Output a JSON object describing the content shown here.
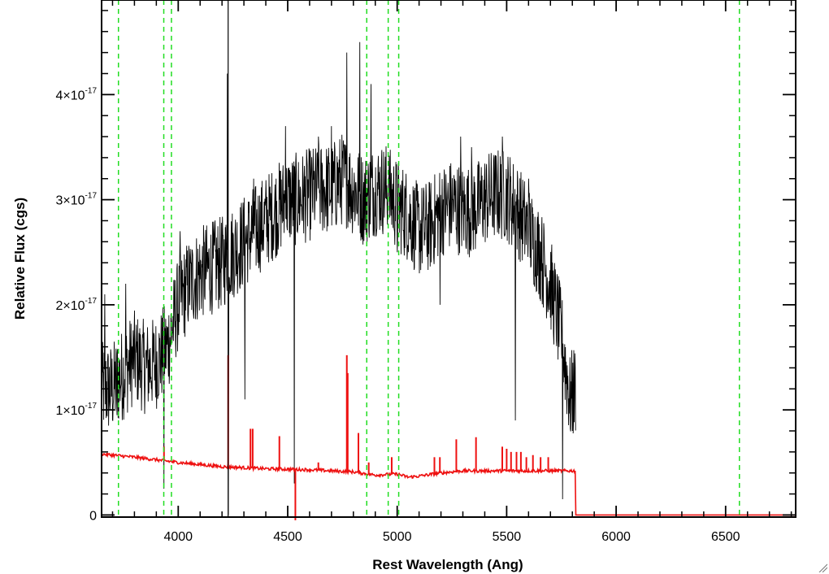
{
  "chart_data": {
    "type": "line",
    "title": "",
    "xlabel": "Rest Wavelength (Ang)",
    "ylabel": "Relative Flux (cgs)",
    "xlim": [
      3650,
      6820
    ],
    "ylim": [
      -0.02,
      4.9
    ],
    "y_exponent": "-17",
    "x_ticks": [
      4000,
      4500,
      5000,
      5500,
      6000,
      6500
    ],
    "x_tick_labels": [
      "4000",
      "4500",
      "5000",
      "5500",
      "6000",
      "6500"
    ],
    "y_ticks": [
      0,
      1,
      2,
      3,
      4
    ],
    "y_tick_labels": [
      {
        "mant": "0",
        "sup": ""
      },
      {
        "mant": "1×10",
        "sup": "-17"
      },
      {
        "mant": "2×10",
        "sup": "-17"
      },
      {
        "mant": "3×10",
        "sup": "-17"
      },
      {
        "mant": "4×10",
        "sup": "-17"
      }
    ],
    "grid": false,
    "series": [
      {
        "color": "#000000",
        "style": "solid",
        "envelope_x": [
          3650,
          3700,
          3750,
          3800,
          3850,
          3900,
          3950,
          4000,
          4050,
          4100,
          4150,
          4200,
          4250,
          4300,
          4350,
          4400,
          4450,
          4500,
          4550,
          4600,
          4650,
          4700,
          4750,
          4800,
          4850,
          4900,
          4950,
          5000,
          5050,
          5100,
          5150,
          5200,
          5250,
          5300,
          5350,
          5400,
          5450,
          5500,
          5550,
          5600,
          5650,
          5700,
          5750,
          5790,
          5815
        ],
        "envelope_y": [
          1.2,
          1.2,
          1.35,
          1.5,
          1.4,
          1.45,
          1.6,
          2.0,
          2.2,
          2.3,
          2.35,
          2.4,
          2.5,
          2.6,
          2.7,
          2.8,
          2.9,
          3.0,
          3.0,
          3.05,
          3.1,
          3.1,
          3.2,
          3.1,
          3.0,
          3.1,
          3.1,
          2.95,
          2.85,
          2.7,
          2.75,
          2.9,
          2.95,
          2.9,
          2.9,
          3.0,
          3.05,
          3.05,
          2.9,
          2.7,
          2.5,
          2.2,
          1.7,
          1.1,
          1.2
        ],
        "spikes": [
          {
            "x": 3665,
            "y": 2.1
          },
          {
            "x": 3720,
            "y": 0.95
          },
          {
            "x": 3760,
            "y": 2.2
          },
          {
            "x": 3935,
            "y": 0.25
          },
          {
            "x": 4008,
            "y": 2.7
          },
          {
            "x": 4225,
            "y": 4.2
          },
          {
            "x": 4230,
            "y": 0.0
          },
          {
            "x": 4305,
            "y": 1.1
          },
          {
            "x": 4345,
            "y": 3.2
          },
          {
            "x": 4490,
            "y": 3.7
          },
          {
            "x": 4530,
            "y": 0.3
          },
          {
            "x": 4640,
            "y": 3.6
          },
          {
            "x": 4700,
            "y": 3.7
          },
          {
            "x": 4770,
            "y": 4.4
          },
          {
            "x": 4830,
            "y": 4.5
          },
          {
            "x": 4880,
            "y": 4.1
          },
          {
            "x": 4960,
            "y": 3.2
          },
          {
            "x": 5000,
            "y": 2.5
          },
          {
            "x": 5195,
            "y": 2.0
          },
          {
            "x": 5290,
            "y": 3.6
          },
          {
            "x": 5340,
            "y": 3.5
          },
          {
            "x": 5480,
            "y": 3.6
          },
          {
            "x": 5540,
            "y": 0.9
          },
          {
            "x": 5600,
            "y": 3.2
          },
          {
            "x": 5660,
            "y": 2.7
          },
          {
            "x": 5755,
            "y": 0.15
          },
          {
            "x": 5790,
            "y": 1.5
          }
        ]
      },
      {
        "color": "#ee1111",
        "style": "solid",
        "baseline_x": [
          3650,
          3800,
          4000,
          4200,
          4400,
          4600,
          4800,
          4900,
          5000,
          5050,
          5100,
          5200,
          5300,
          5400,
          5500,
          5600,
          5700,
          5815,
          5816,
          6820
        ],
        "baseline_y": [
          0.58,
          0.55,
          0.5,
          0.46,
          0.44,
          0.43,
          0.41,
          0.38,
          0.39,
          0.36,
          0.37,
          0.4,
          0.42,
          0.42,
          0.42,
          0.42,
          0.42,
          0.42,
          0.0,
          0.0
        ],
        "lines": [
          {
            "x": 3935,
            "y": 0.65
          },
          {
            "x": 4228,
            "y": 1.52
          },
          {
            "x": 4330,
            "y": 0.82
          },
          {
            "x": 4340,
            "y": 0.82
          },
          {
            "x": 4462,
            "y": 0.75
          },
          {
            "x": 4535,
            "y": -0.05
          },
          {
            "x": 4640,
            "y": 0.5
          },
          {
            "x": 4770,
            "y": 1.52
          },
          {
            "x": 4774,
            "y": 1.35
          },
          {
            "x": 4823,
            "y": 0.78
          },
          {
            "x": 4870,
            "y": 0.5
          },
          {
            "x": 4975,
            "y": 0.55
          },
          {
            "x": 5170,
            "y": 0.55
          },
          {
            "x": 5195,
            "y": 0.55
          },
          {
            "x": 5270,
            "y": 0.72
          },
          {
            "x": 5360,
            "y": 0.74
          },
          {
            "x": 5480,
            "y": 0.65
          },
          {
            "x": 5500,
            "y": 0.63
          },
          {
            "x": 5520,
            "y": 0.6
          },
          {
            "x": 5545,
            "y": 0.6
          },
          {
            "x": 5565,
            "y": 0.6
          },
          {
            "x": 5590,
            "y": 0.55
          },
          {
            "x": 5620,
            "y": 0.57
          },
          {
            "x": 5655,
            "y": 0.55
          },
          {
            "x": 5690,
            "y": 0.55
          }
        ]
      }
    ],
    "reference_lines": {
      "color": "#22dd22",
      "style": "dashed",
      "x": [
        3727,
        3934,
        3969,
        4861,
        4959,
        5007,
        6563
      ]
    },
    "solid_reference_lines": {
      "color": "#000000",
      "x": [
        4228
      ]
    }
  }
}
